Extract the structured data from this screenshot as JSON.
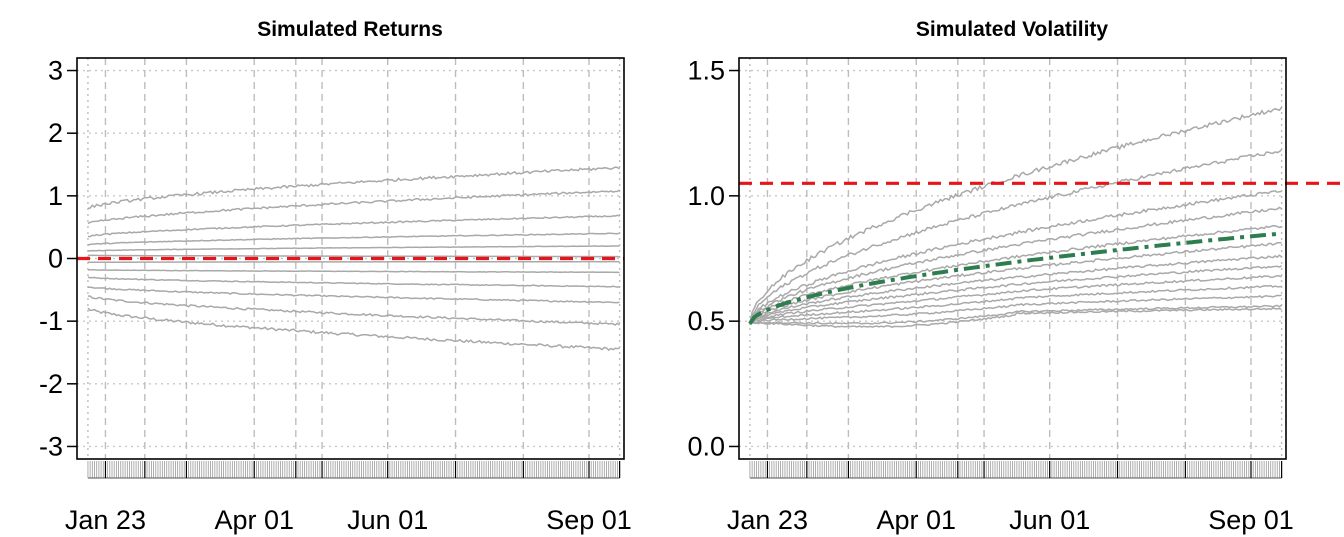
{
  "chart_data": [
    {
      "type": "line",
      "title": "Simulated Returns",
      "xlabel": "",
      "ylabel": "",
      "x_range": [
        "Jan 10",
        "Sep 17"
      ],
      "ylim": [
        -3.2,
        3.2
      ],
      "y_ticks": [
        -3,
        -2,
        -1,
        0,
        1,
        2,
        3
      ],
      "x_tick_labels": [
        "Jan 23",
        "Apr 01",
        "Jun 01",
        "Sep 01"
      ],
      "grid": true,
      "legend": "none",
      "reference_line": {
        "y": 0,
        "color": "#e8141a",
        "style": "dashed"
      },
      "quantile_paths": [
        {
          "start": -0.8,
          "end": -1.45
        },
        {
          "start": -0.6,
          "end": -1.05
        },
        {
          "start": -0.45,
          "end": -0.7
        },
        {
          "start": -0.3,
          "end": -0.45
        },
        {
          "start": -0.18,
          "end": -0.22
        },
        {
          "start": -0.06,
          "end": -0.05
        },
        {
          "start": 0.05,
          "end": 0.03
        },
        {
          "start": 0.12,
          "end": 0.2
        },
        {
          "start": 0.22,
          "end": 0.4
        },
        {
          "start": 0.35,
          "end": 0.68
        },
        {
          "start": 0.55,
          "end": 1.08
        },
        {
          "start": 0.8,
          "end": 1.45
        }
      ]
    },
    {
      "type": "line",
      "title": "Simulated Volatility",
      "xlabel": "",
      "ylabel": "",
      "x_range": [
        "Jan 10",
        "Sep 17"
      ],
      "ylim": [
        -0.05,
        1.55
      ],
      "y_ticks": [
        0.0,
        0.5,
        1.0,
        1.5
      ],
      "y_tick_labels": [
        "0.0",
        "0.5",
        "1.0",
        "1.5"
      ],
      "x_tick_labels": [
        "Jan 23",
        "Apr 01",
        "Jun 01",
        "Sep 01"
      ],
      "grid": true,
      "legend": "none",
      "reference_line": {
        "y": 1.05,
        "color": "#e8141a",
        "style": "dashed"
      },
      "mean_path": {
        "color": "#2e7d4f",
        "style": "dot-dash",
        "start": 0.49,
        "end": 0.85
      },
      "quantile_paths": [
        {
          "start": 0.49,
          "end": 0.55,
          "dip": 0.04
        },
        {
          "start": 0.49,
          "end": 0.56,
          "dip": 0.03
        },
        {
          "start": 0.49,
          "end": 0.6,
          "dip": 0.02
        },
        {
          "start": 0.49,
          "end": 0.64,
          "dip": 0.015
        },
        {
          "start": 0.49,
          "end": 0.68,
          "dip": 0.01
        },
        {
          "start": 0.49,
          "end": 0.72,
          "dip": 0.005
        },
        {
          "start": 0.49,
          "end": 0.76,
          "dip": 0
        },
        {
          "start": 0.49,
          "end": 0.81,
          "dip": 0
        },
        {
          "start": 0.49,
          "end": 0.88,
          "dip": 0
        },
        {
          "start": 0.49,
          "end": 0.95,
          "dip": 0
        },
        {
          "start": 0.49,
          "end": 1.02,
          "dip": 0
        },
        {
          "start": 0.49,
          "end": 1.18,
          "dip": 0
        },
        {
          "start": 0.49,
          "end": 1.35,
          "dip": 0
        }
      ]
    }
  ]
}
